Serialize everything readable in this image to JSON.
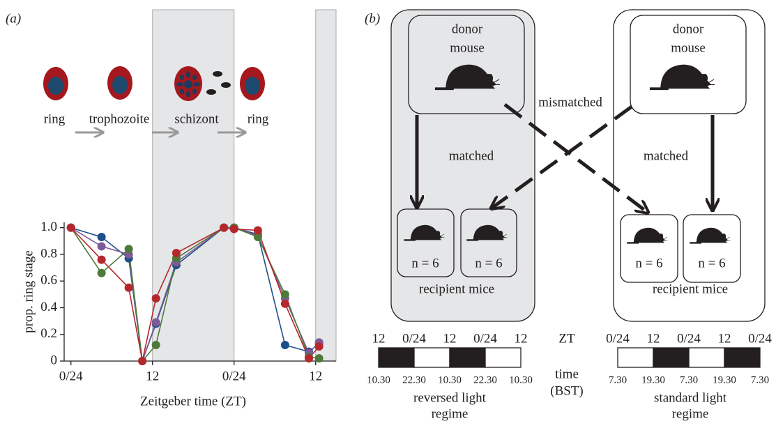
{
  "chart_data": {
    "type": "line",
    "x": [
      0,
      4.5,
      8.5,
      10.5,
      12.5,
      15.5,
      22.5,
      24,
      27.5,
      31.5,
      35,
      36.5
    ],
    "series": [
      {
        "color": "#1c4f8a",
        "values": [
          1.0,
          0.93,
          0.77,
          0,
          0.28,
          0.72,
          1.0,
          1.0,
          0.95,
          0.12,
          0.07,
          0.13
        ]
      },
      {
        "color": "#7e5a9b",
        "values": [
          1.0,
          0.86,
          0.8,
          0,
          0.29,
          0.74,
          1.0,
          1.0,
          0.94,
          0.47,
          0.06,
          0.14
        ]
      },
      {
        "color": "#4d7a3a",
        "values": [
          1.0,
          0.66,
          0.84,
          0,
          0.12,
          0.77,
          1.0,
          1.0,
          0.93,
          0.5,
          0.03,
          0.02
        ]
      },
      {
        "color": "#b5272d",
        "values": [
          1.0,
          0.76,
          0.55,
          0,
          0.47,
          0.81,
          1.0,
          0.99,
          0.98,
          0.43,
          0.02,
          0.11
        ]
      }
    ],
    "xlim": [
      -1,
      39
    ],
    "ylim": [
      0,
      1.04
    ],
    "xticks": [
      {
        "value": 0,
        "label": "0/24"
      },
      12,
      {
        "value": 24,
        "label": "0/24"
      },
      {
        "value": 36,
        "label": "12"
      }
    ],
    "yticks": [
      0,
      0.2,
      0.4,
      0.6,
      0.8,
      {
        "value": 1,
        "label": "1.0"
      }
    ],
    "shaded": [
      [
        12,
        24
      ],
      [
        36,
        39
      ]
    ],
    "xlabel": "Zeitgeber time (ZT)",
    "ylabel": "prop. ring stage"
  },
  "panel_a": {
    "label": "(a)",
    "stages": [
      "ring",
      "trophozoite",
      "schizont",
      "ring"
    ]
  },
  "panel_b": {
    "label": "(b)",
    "left": {
      "donor": [
        "donor",
        "mouse"
      ],
      "arrow_label": "matched",
      "recipients": [
        "n = 6",
        "n = 6"
      ],
      "recipient_label": "recipient mice"
    },
    "right": {
      "donor": [
        "donor",
        "mouse"
      ],
      "arrow_label": "matched",
      "recipients": [
        "n = 6",
        "n = 6"
      ],
      "recipient_label": "recipient mice"
    },
    "cross_label": "mismatched",
    "zt_label": "ZT",
    "time_label": [
      "time",
      "(BST)"
    ],
    "reversed": {
      "zt": [
        "12",
        "0/24",
        "12",
        "0/24",
        "12"
      ],
      "times": [
        "10.30",
        "22.30",
        "10.30",
        "22.30",
        "10.30"
      ],
      "label": [
        "reversed light",
        "regime"
      ]
    },
    "standard": {
      "zt": [
        "0/24",
        "12",
        "0/24",
        "12",
        "0/24"
      ],
      "times": [
        "7.30",
        "19.30",
        "7.30",
        "19.30",
        "7.30"
      ],
      "label": [
        "standard light",
        "regime"
      ]
    }
  }
}
